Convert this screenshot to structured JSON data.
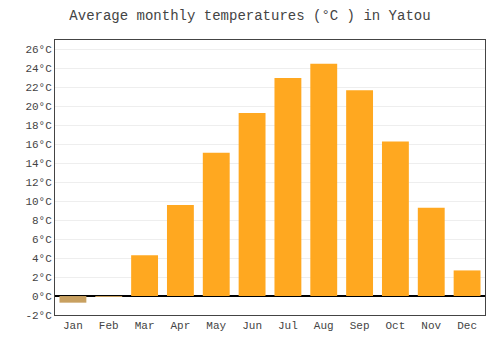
{
  "chart_data": {
    "type": "bar",
    "title": "Average monthly temperatures (°C ) in Yatou",
    "categories": [
      "Jan",
      "Feb",
      "Mar",
      "Apr",
      "May",
      "Jun",
      "Jul",
      "Aug",
      "Sep",
      "Oct",
      "Nov",
      "Dec"
    ],
    "values": [
      -0.7,
      -0.1,
      4.3,
      9.6,
      15.1,
      19.3,
      23.0,
      24.5,
      21.7,
      16.3,
      9.3,
      2.7
    ],
    "colors": [
      "#C8A060",
      "#C8A060",
      "#FFA820",
      "#FFA820",
      "#FFA820",
      "#FFA820",
      "#FFA820",
      "#FFA820",
      "#FFA820",
      "#FFA820",
      "#FFA820",
      "#FFA820"
    ],
    "ylim": [
      -2,
      27
    ],
    "yticks": [
      {
        "value": -2,
        "label": "-2°C"
      },
      {
        "value": 0,
        "label": "0°C"
      },
      {
        "value": 2,
        "label": "2°C"
      },
      {
        "value": 4,
        "label": "4°C"
      },
      {
        "value": 6,
        "label": "6°C"
      },
      {
        "value": 8,
        "label": "8°C"
      },
      {
        "value": 10,
        "label": "10°C"
      },
      {
        "value": 12,
        "label": "12°C"
      },
      {
        "value": 14,
        "label": "14°C"
      },
      {
        "value": 16,
        "label": "16°C"
      },
      {
        "value": 18,
        "label": "18°C"
      },
      {
        "value": 20,
        "label": "20°C"
      },
      {
        "value": 22,
        "label": "22°C"
      },
      {
        "value": 24,
        "label": "24°C"
      },
      {
        "value": 26,
        "label": "26°C"
      }
    ],
    "grid": true
  }
}
